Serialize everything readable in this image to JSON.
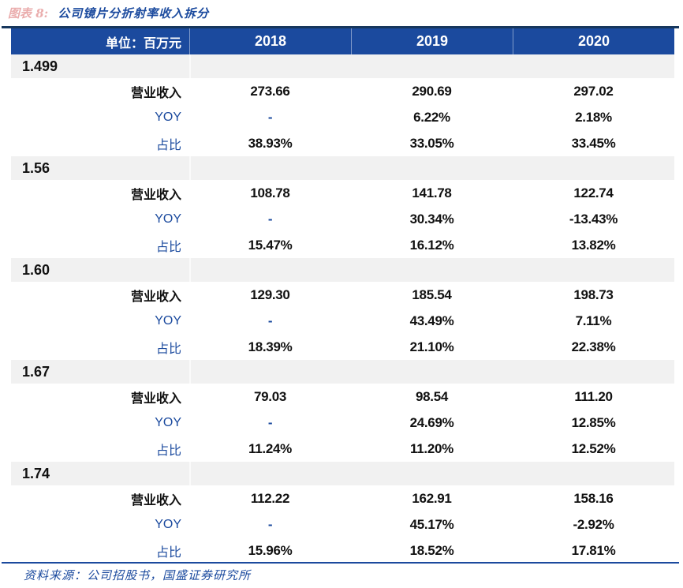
{
  "title": {
    "prefix": "图表 8:",
    "text": "公司镜片分折射率收入拆分"
  },
  "table": {
    "unit_label": "单位：百万元",
    "years": [
      "2018",
      "2019",
      "2020"
    ],
    "row_labels": {
      "revenue": "营业收入",
      "yoy": "YOY",
      "share": "占比"
    },
    "sections": [
      {
        "index": "1.499",
        "revenue": [
          "273.66",
          "290.69",
          "297.02"
        ],
        "yoy": [
          "-",
          "6.22%",
          "2.18%"
        ],
        "share": [
          "38.93%",
          "33.05%",
          "33.45%"
        ]
      },
      {
        "index": "1.56",
        "revenue": [
          "108.78",
          "141.78",
          "122.74"
        ],
        "yoy": [
          "-",
          "30.34%",
          "-13.43%"
        ],
        "share": [
          "15.47%",
          "16.12%",
          "13.82%"
        ]
      },
      {
        "index": "1.60",
        "revenue": [
          "129.30",
          "185.54",
          "198.73"
        ],
        "yoy": [
          "-",
          "43.49%",
          "7.11%"
        ],
        "share": [
          "18.39%",
          "21.10%",
          "22.38%"
        ]
      },
      {
        "index": "1.67",
        "revenue": [
          "79.03",
          "98.54",
          "111.20"
        ],
        "yoy": [
          "-",
          "24.69%",
          "12.85%"
        ],
        "share": [
          "11.24%",
          "11.20%",
          "12.52%"
        ]
      },
      {
        "index": "1.74",
        "revenue": [
          "112.22",
          "162.91",
          "158.16"
        ],
        "yoy": [
          "-",
          "45.17%",
          "-2.92%"
        ],
        "share": [
          "15.96%",
          "18.52%",
          "17.81%"
        ]
      }
    ]
  },
  "footer": {
    "source": "资料来源：公司招股书，国盛证券研究所"
  },
  "colors": {
    "header_blue": "#1B4A9E",
    "accent_blue": "#1B4A9E",
    "top_rule_navy": "#17375D",
    "band_gray": "#F1F1F1",
    "prefix_faded_red": "#C00000"
  }
}
